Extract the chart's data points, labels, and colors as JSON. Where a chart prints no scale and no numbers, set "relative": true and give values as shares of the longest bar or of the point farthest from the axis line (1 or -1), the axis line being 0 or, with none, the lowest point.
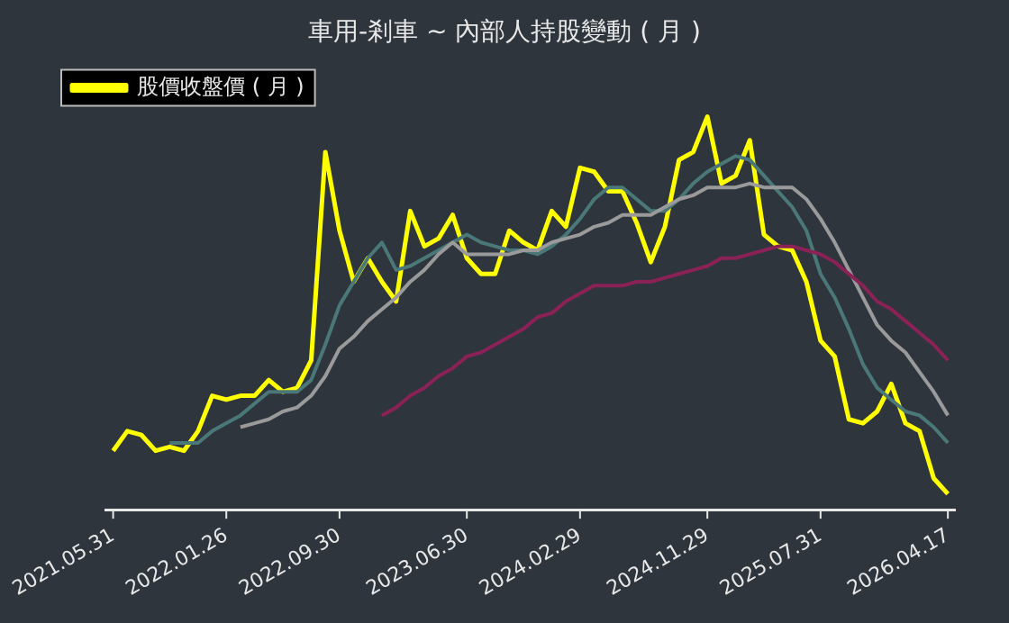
{
  "chart_data": {
    "type": "line",
    "title": "車用-剎車 ~ 內部人持股變動 ( 月 )",
    "relative": true,
    "legend": "top left",
    "grid": false,
    "marker": "none",
    "line_style": "solid",
    "categories": [
      "2021.05.31",
      null,
      null,
      null,
      null,
      null,
      null,
      null,
      "2022.01.26",
      null,
      null,
      null,
      null,
      null,
      null,
      null,
      "2022.09.30",
      null,
      null,
      null,
      null,
      null,
      null,
      null,
      null,
      "2023.06.30",
      null,
      null,
      null,
      null,
      null,
      null,
      null,
      "2024.02.29",
      null,
      null,
      null,
      null,
      null,
      null,
      null,
      null,
      "2024.11.29",
      null,
      null,
      null,
      null,
      null,
      null,
      null,
      "2025.07.31",
      null,
      null,
      null,
      null,
      null,
      null,
      null,
      null,
      "2026.04.17"
    ],
    "series": [
      {
        "name": "股價收盤價 ( 月 )",
        "color": "#ffff00",
        "values": [
          0.15,
          0.2,
          0.19,
          0.15,
          0.16,
          0.15,
          0.2,
          0.29,
          0.28,
          0.29,
          0.29,
          0.33,
          0.3,
          0.31,
          0.38,
          0.91,
          0.71,
          0.58,
          0.64,
          0.58,
          0.53,
          0.76,
          0.67,
          0.69,
          0.75,
          0.64,
          0.6,
          0.6,
          0.71,
          0.68,
          0.66,
          0.76,
          0.72,
          0.87,
          0.86,
          0.81,
          0.81,
          0.73,
          0.63,
          0.72,
          0.89,
          0.91,
          1,
          0.83,
          0.85,
          0.94,
          0.7,
          0.67,
          0.66,
          0.58,
          0.43,
          0.39,
          0.23,
          0.22,
          0.25,
          0.32,
          0.22,
          0.2,
          0.08,
          0.04
        ]
      },
      {
        "color": "#4a7878",
        "values": [
          null,
          null,
          null,
          null,
          0.17,
          0.17,
          0.17,
          0.2,
          0.22,
          0.24,
          0.27,
          0.3,
          0.3,
          0.3,
          0.33,
          0.42,
          0.52,
          0.58,
          0.64,
          0.68,
          0.61,
          0.62,
          0.64,
          0.66,
          0.68,
          0.7,
          0.68,
          0.67,
          0.66,
          0.66,
          0.65,
          0.67,
          0.7,
          0.74,
          0.79,
          0.82,
          0.82,
          0.79,
          0.76,
          0.76,
          0.79,
          0.83,
          0.86,
          0.88,
          0.9,
          0.89,
          0.85,
          0.81,
          0.77,
          0.71,
          0.6,
          0.54,
          0.46,
          0.37,
          0.31,
          0.28,
          0.25,
          0.24,
          0.21,
          0.17
        ]
      },
      {
        "color": "#9a9a9a",
        "values": [
          null,
          null,
          null,
          null,
          null,
          null,
          null,
          null,
          null,
          0.21,
          0.22,
          0.23,
          0.25,
          0.26,
          0.29,
          0.34,
          0.41,
          0.44,
          0.48,
          0.51,
          0.54,
          0.58,
          0.61,
          0.65,
          0.68,
          0.65,
          0.65,
          0.65,
          0.65,
          0.66,
          0.66,
          0.68,
          0.69,
          0.7,
          0.72,
          0.73,
          0.75,
          0.75,
          0.75,
          0.77,
          0.79,
          0.8,
          0.82,
          0.82,
          0.82,
          0.83,
          0.82,
          0.82,
          0.82,
          0.79,
          0.74,
          0.68,
          0.61,
          0.54,
          0.47,
          0.43,
          0.4,
          0.35,
          0.3,
          0.24
        ]
      },
      {
        "color": "#8b2257",
        "values": [
          null,
          null,
          null,
          null,
          null,
          null,
          null,
          null,
          null,
          null,
          null,
          null,
          null,
          null,
          null,
          null,
          null,
          null,
          null,
          0.24,
          0.26,
          0.29,
          0.31,
          0.34,
          0.36,
          0.39,
          0.4,
          0.42,
          0.44,
          0.46,
          0.49,
          0.5,
          0.53,
          0.55,
          0.57,
          0.57,
          0.57,
          0.58,
          0.58,
          0.59,
          0.6,
          0.61,
          0.62,
          0.64,
          0.64,
          0.65,
          0.66,
          0.67,
          0.67,
          0.66,
          0.65,
          0.63,
          0.6,
          0.57,
          0.53,
          0.51,
          0.48,
          0.45,
          0.42,
          0.38
        ]
      }
    ]
  }
}
